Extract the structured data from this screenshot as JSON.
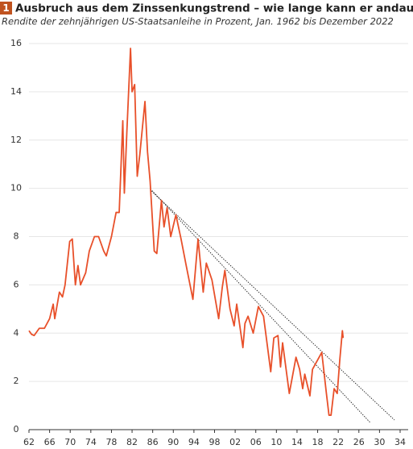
{
  "chart_data": {
    "type": "line",
    "badge": "1",
    "title": "Ausbruch aus dem Zinssenkungstrend – wie lange kann er andauern",
    "subtitle": "Rendite der zehnjährigen US-Staatsanleihe in Prozent, Jan. 1962 bis Dezember 2022",
    "x": [
      1962.0,
      1962.5,
      1963.0,
      1964.0,
      1965.0,
      1966.0,
      1966.7,
      1967.0,
      1967.9,
      1968.5,
      1969.0,
      1969.9,
      1970.4,
      1971.0,
      1971.5,
      1972.0,
      1973.0,
      1973.7,
      1974.7,
      1975.5,
      1976.5,
      1977.0,
      1978.0,
      1978.9,
      1979.5,
      1980.2,
      1980.5,
      1981.0,
      1981.7,
      1982.0,
      1982.5,
      1983.0,
      1983.5,
      1984.5,
      1985.0,
      1985.5,
      1986.3,
      1986.8,
      1987.7,
      1988.2,
      1988.8,
      1989.5,
      1990.5,
      1991.5,
      1992.5,
      1993.8,
      1994.8,
      1995.8,
      1996.4,
      1997.5,
      1998.8,
      1999.5,
      2000.0,
      2001.0,
      2001.8,
      2002.3,
      2003.5,
      2003.9,
      2004.5,
      2005.5,
      2006.5,
      2007.5,
      2008.9,
      2009.5,
      2010.3,
      2010.8,
      2011.2,
      2012.5,
      2013.8,
      2014.5,
      2015.1,
      2015.5,
      2016.5,
      2017.0,
      2018.8,
      2019.7,
      2020.2,
      2020.6,
      2021.2,
      2021.8,
      2022.3,
      2022.8,
      2022.95
    ],
    "series": [
      {
        "name": "Rendite",
        "color": "#e8502a",
        "values": [
          4.1,
          3.95,
          3.9,
          4.2,
          4.2,
          4.6,
          5.2,
          4.6,
          5.7,
          5.5,
          6.0,
          7.8,
          7.9,
          6.0,
          6.8,
          6.0,
          6.5,
          7.4,
          8.0,
          8.0,
          7.4,
          7.2,
          8.0,
          9.0,
          9.0,
          12.8,
          9.8,
          12.4,
          15.8,
          14.0,
          14.3,
          10.5,
          11.4,
          13.6,
          11.5,
          10.3,
          7.4,
          7.3,
          9.5,
          8.4,
          9.2,
          8.0,
          8.9,
          7.9,
          6.8,
          5.4,
          7.9,
          5.7,
          6.9,
          6.2,
          4.6,
          5.9,
          6.6,
          5.0,
          4.3,
          5.2,
          3.4,
          4.4,
          4.7,
          4.0,
          5.1,
          4.7,
          2.4,
          3.8,
          3.9,
          2.6,
          3.6,
          1.5,
          3.0,
          2.5,
          1.7,
          2.3,
          1.4,
          2.5,
          3.2,
          1.5,
          0.6,
          0.6,
          1.7,
          1.5,
          2.9,
          4.1,
          3.8
        ]
      }
    ],
    "trend_lines": [
      {
        "x": [
          1985.7,
          2032.9
        ],
        "y": [
          9.9,
          0.4
        ]
      },
      {
        "x": [
          1985.9,
          2028.3
        ],
        "y": [
          9.9,
          0.27
        ]
      }
    ],
    "xlim": [
      1962,
      2034
    ],
    "xticks": [
      {
        "value": 1962,
        "label": "62"
      },
      {
        "value": 1966,
        "label": "66"
      },
      {
        "value": 1970,
        "label": "70"
      },
      {
        "value": 1974,
        "label": "74"
      },
      {
        "value": 1978,
        "label": "78"
      },
      {
        "value": 1982,
        "label": "82"
      },
      {
        "value": 1986,
        "label": "86"
      },
      {
        "value": 1990,
        "label": "90"
      },
      {
        "value": 1994,
        "label": "94"
      },
      {
        "value": 1998,
        "label": "98"
      },
      {
        "value": 2002,
        "label": "02"
      },
      {
        "value": 2006,
        "label": "06"
      },
      {
        "value": 2010,
        "label": "10"
      },
      {
        "value": 2014,
        "label": "14"
      },
      {
        "value": 2018,
        "label": "18"
      },
      {
        "value": 2022,
        "label": "22"
      },
      {
        "value": 2026,
        "label": "26"
      },
      {
        "value": 2030,
        "label": "30"
      },
      {
        "value": 2034,
        "label": "34"
      }
    ],
    "ylim": [
      0,
      16
    ],
    "yticks": [
      0,
      2,
      4,
      6,
      8,
      10,
      12,
      14,
      16
    ],
    "grid": true
  }
}
